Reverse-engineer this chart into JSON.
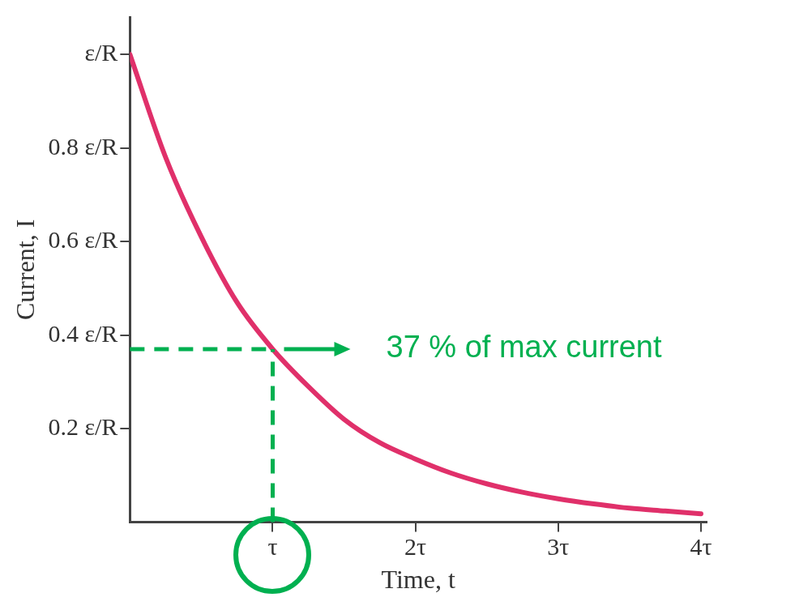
{
  "chart_data": {
    "type": "line",
    "xlabel": "Time, t",
    "ylabel": "Current, I",
    "x": [
      0,
      0.25,
      0.5,
      0.75,
      1,
      1.25,
      1.5,
      1.75,
      2,
      2.25,
      2.5,
      2.75,
      3,
      3.25,
      3.5,
      3.75,
      4
    ],
    "series": [
      {
        "color": "#e0306a",
        "values": [
          1,
          0.78,
          0.61,
          0.47,
          0.37,
          0.29,
          0.22,
          0.17,
          0.135,
          0.105,
          0.082,
          0.064,
          0.05,
          0.039,
          0.03,
          0.024,
          0.018
        ]
      }
    ],
    "xlim": [
      0,
      4.04
    ],
    "xticks": [
      {
        "value": 1,
        "label": "τ"
      },
      {
        "value": 2,
        "label": "2τ"
      },
      {
        "value": 3,
        "label": "3τ"
      },
      {
        "value": 4,
        "label": "4τ"
      }
    ],
    "ylim": [
      0,
      1.08
    ],
    "yticks": [
      {
        "value": 0.2,
        "label": "0.2 ε/R"
      },
      {
        "value": 0.4,
        "label": "0.4 ε/R"
      },
      {
        "value": 0.6,
        "label": "0.6 ε/R"
      },
      {
        "value": 0.8,
        "label": "0.8 ε/R"
      },
      {
        "value": 1,
        "label": "ε/R"
      }
    ],
    "ref_lines": [
      {
        "axis": "y",
        "value": 0.37,
        "color": "#00b050",
        "line_style": "dashed"
      },
      {
        "axis": "x",
        "value": 1,
        "color": "#00b050",
        "line_style": "dashed"
      }
    ],
    "annotations": [
      "37 % of max current"
    ],
    "grid": false,
    "legend": false,
    "marker": "none",
    "line_style": "solid"
  }
}
